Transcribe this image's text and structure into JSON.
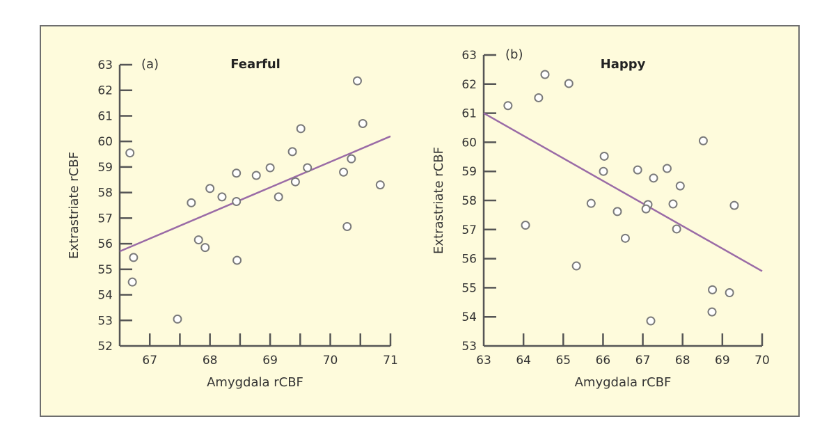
{
  "chart_data": [
    {
      "type": "scatter",
      "panel_label": "(a)",
      "title": "Fearful",
      "xlabel": "Amygdala rCBF",
      "ylabel": "Extrastriate rCBF",
      "xlim": [
        66.5,
        71
      ],
      "ylim": [
        52,
        63
      ],
      "xticks": [
        67,
        68,
        69,
        70,
        71
      ],
      "xminor_ticks": [
        66.5,
        67,
        67.5,
        68,
        68.5,
        69,
        69.5,
        70,
        70.5,
        71
      ],
      "yticks": [
        52,
        53,
        54,
        55,
        56,
        57,
        58,
        59,
        60,
        61,
        62,
        63
      ],
      "grid": false,
      "points": [
        [
          66.67,
          59.55
        ],
        [
          66.73,
          55.46
        ],
        [
          66.71,
          54.5
        ],
        [
          67.46,
          53.05
        ],
        [
          67.69,
          57.6
        ],
        [
          67.81,
          56.15
        ],
        [
          67.92,
          55.85
        ],
        [
          68.0,
          58.16
        ],
        [
          68.2,
          57.83
        ],
        [
          68.44,
          58.76
        ],
        [
          68.44,
          57.65
        ],
        [
          68.45,
          55.35
        ],
        [
          68.77,
          58.67
        ],
        [
          69.0,
          58.97
        ],
        [
          69.14,
          57.83
        ],
        [
          69.37,
          59.6
        ],
        [
          69.51,
          60.5
        ],
        [
          69.42,
          58.42
        ],
        [
          69.62,
          58.97
        ],
        [
          70.22,
          58.8
        ],
        [
          70.35,
          59.32
        ],
        [
          70.45,
          62.37
        ],
        [
          70.54,
          60.7
        ],
        [
          70.83,
          58.3
        ],
        [
          70.28,
          56.67
        ]
      ],
      "trend_line": [
        [
          66.5,
          55.7
        ],
        [
          71,
          60.2
        ]
      ]
    },
    {
      "type": "scatter",
      "panel_label": "(b)",
      "title": "Happy",
      "xlabel": "Amygdala rCBF",
      "ylabel": "Extrastriate rCBF",
      "xlim": [
        63,
        70
      ],
      "ylim": [
        53,
        63
      ],
      "xticks": [
        63,
        64,
        65,
        66,
        67,
        68,
        69,
        70
      ],
      "xminor_ticks": [
        64,
        65,
        66,
        67,
        68,
        69,
        70
      ],
      "yticks": [
        53,
        54,
        55,
        56,
        57,
        58,
        59,
        60,
        61,
        62,
        63
      ],
      "grid": false,
      "points": [
        [
          63.61,
          61.26
        ],
        [
          64.38,
          61.53
        ],
        [
          64.54,
          62.33
        ],
        [
          65.14,
          62.02
        ],
        [
          64.05,
          57.15
        ],
        [
          65.33,
          55.75
        ],
        [
          65.7,
          57.9
        ],
        [
          66.03,
          59.52
        ],
        [
          66.01,
          59.0
        ],
        [
          68.52,
          60.05
        ],
        [
          66.87,
          59.05
        ],
        [
          67.61,
          59.1
        ],
        [
          67.27,
          58.77
        ],
        [
          67.94,
          58.5
        ],
        [
          66.36,
          57.62
        ],
        [
          67.13,
          57.86
        ],
        [
          67.08,
          57.71
        ],
        [
          67.76,
          57.88
        ],
        [
          69.3,
          57.83
        ],
        [
          66.56,
          56.7
        ],
        [
          67.85,
          57.02
        ],
        [
          68.75,
          54.93
        ],
        [
          69.18,
          54.83
        ],
        [
          68.74,
          54.17
        ],
        [
          67.2,
          53.86
        ]
      ],
      "trend_line": [
        [
          63,
          61.0
        ],
        [
          70,
          55.57
        ]
      ]
    }
  ],
  "colors": {
    "background": "#fefbdc",
    "trend_line": "#9a6ba6",
    "marker_stroke": "#7a7a7a",
    "marker_fill": "#ffffff",
    "axis": "#555555"
  }
}
